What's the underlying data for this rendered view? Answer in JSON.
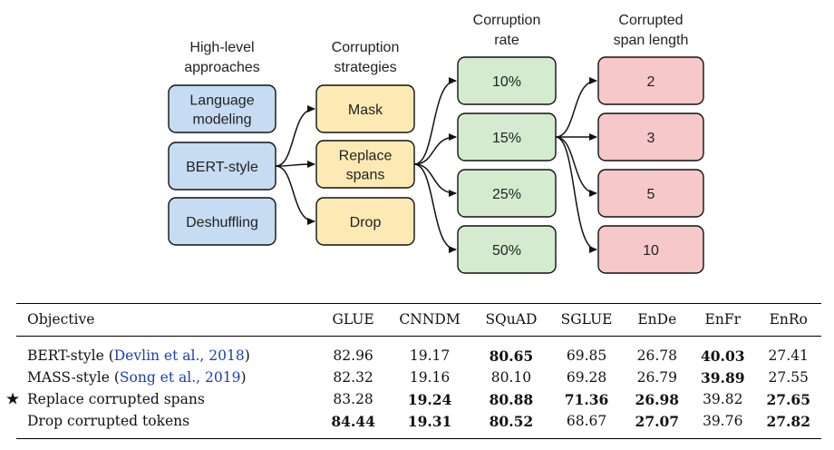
{
  "diagram": {
    "columns": [
      {
        "heading": [
          "High-level",
          "approaches"
        ],
        "items": [
          "Language\nmodeling",
          "BERT-style",
          "Deshuffling"
        ],
        "fill": "#c6dcf2"
      },
      {
        "heading": [
          "Corruption",
          "strategies"
        ],
        "items": [
          "Mask",
          "Replace\nspans",
          "Drop"
        ],
        "fill": "#fde9b4"
      },
      {
        "heading": [
          "Corruption",
          "rate"
        ],
        "items": [
          "10%",
          "15%",
          "25%",
          "50%"
        ],
        "fill": "#d4ebd0"
      },
      {
        "heading": [
          "Corrupted",
          "span length"
        ],
        "items": [
          "2",
          "3",
          "5",
          "10"
        ],
        "fill": "#f6c8c9"
      }
    ]
  },
  "table": {
    "headers": [
      "Objective",
      "GLUE",
      "CNNDM",
      "SQuAD",
      "SGLUE",
      "EnDe",
      "EnFr",
      "EnRo"
    ],
    "rows": [
      {
        "name": "BERT-style",
        "cite": "Devlin et al., 2018",
        "star": false,
        "values": [
          "82.96",
          "19.17",
          "80.65",
          "69.85",
          "26.78",
          "40.03",
          "27.41"
        ],
        "bold": [
          false,
          false,
          true,
          false,
          false,
          true,
          false
        ]
      },
      {
        "name": "MASS-style",
        "cite": "Song et al., 2019",
        "star": false,
        "values": [
          "82.32",
          "19.16",
          "80.10",
          "69.28",
          "26.79",
          "39.89",
          "27.55"
        ],
        "bold": [
          false,
          false,
          false,
          false,
          false,
          true,
          false
        ]
      },
      {
        "name": "Replace corrupted spans",
        "cite": "",
        "star": true,
        "values": [
          "83.28",
          "19.24",
          "80.88",
          "71.36",
          "26.98",
          "39.82",
          "27.65"
        ],
        "bold": [
          false,
          true,
          true,
          true,
          true,
          false,
          true
        ]
      },
      {
        "name": "Drop corrupted tokens",
        "cite": "",
        "star": false,
        "values": [
          "84.44",
          "19.31",
          "80.52",
          "68.67",
          "27.07",
          "39.76",
          "27.82"
        ],
        "bold": [
          true,
          true,
          true,
          false,
          true,
          false,
          true
        ]
      }
    ]
  }
}
